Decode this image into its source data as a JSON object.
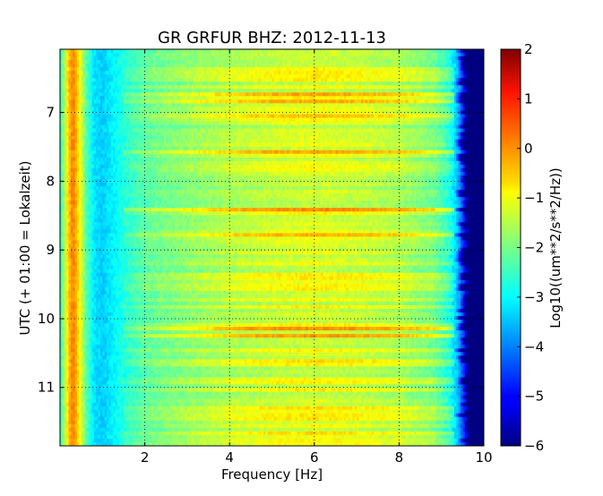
{
  "chart_data": {
    "type": "heatmap",
    "title": "GR GRFUR BHZ: 2012-11-13",
    "xlabel": "Frequency [Hz]",
    "ylabel": "UTC (+ 01:00 = Lokalzeit)",
    "colorbar_label": "Log10((um**2/s**2/Hz))",
    "xlim": [
      0.0,
      10.0
    ],
    "ylim": [
      6.08,
      11.85
    ],
    "y_inverted": true,
    "clim": [
      -6,
      2
    ],
    "colormap": "jet",
    "grid": true,
    "x_ticks": [
      2,
      4,
      6,
      8,
      10
    ],
    "x_tick_labels": [
      "2",
      "4",
      "6",
      "8",
      "10"
    ],
    "y_ticks": [
      7,
      8,
      9,
      10,
      11
    ],
    "y_tick_labels": [
      "7",
      "8",
      "9",
      "10",
      "11"
    ],
    "colorbar_ticks": [
      2,
      1,
      0,
      -1,
      -2,
      -3,
      -4,
      -5,
      -6
    ],
    "colorbar_tick_labels": [
      "2",
      "1",
      "0",
      "−1",
      "−2",
      "−3",
      "−4",
      "−5",
      "−6"
    ],
    "mean_spectrum": {
      "frequency_hz": [
        0.0,
        0.1,
        0.2,
        0.3,
        0.45,
        0.6,
        0.8,
        1.0,
        1.3,
        1.6,
        2.0,
        3.0,
        4.0,
        5.0,
        6.0,
        7.0,
        8.0,
        8.8,
        9.2,
        9.4,
        9.55,
        9.7,
        10.0
      ],
      "log10_psd": [
        -2.6,
        -1.8,
        -0.6,
        0.1,
        -0.9,
        -2.2,
        -3.2,
        -3.4,
        -3.0,
        -2.6,
        -2.2,
        -1.8,
        -1.5,
        -1.3,
        -1.2,
        -1.3,
        -1.5,
        -1.9,
        -2.6,
        -3.6,
        -4.8,
        -6.0,
        -6.0
      ]
    }
  }
}
